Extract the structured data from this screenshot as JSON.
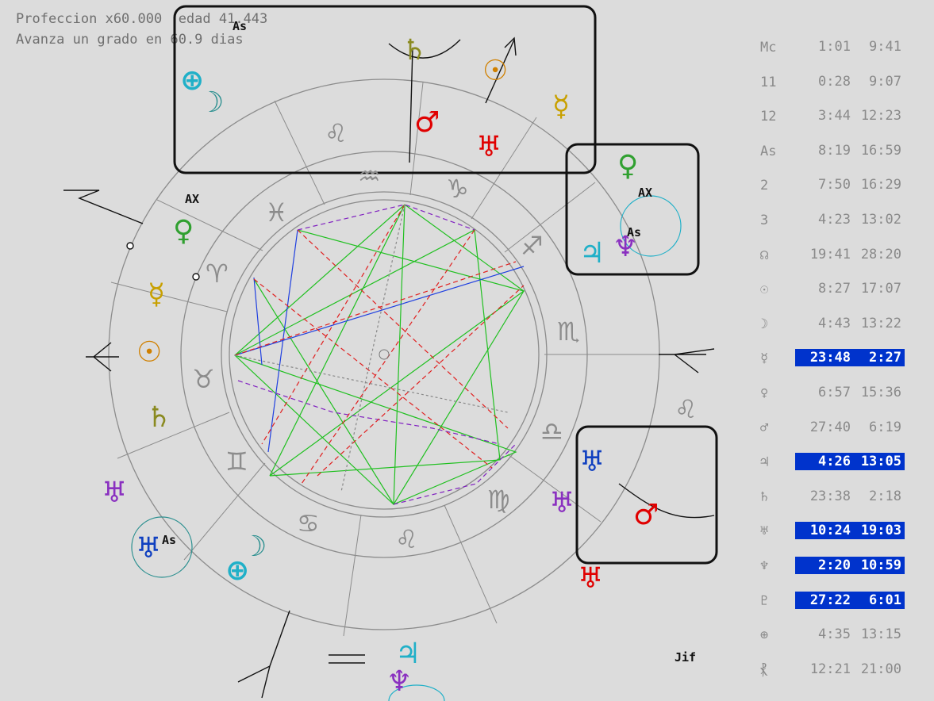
{
  "header": {
    "line1": "Profeccion x60.000  edad 41.443",
    "line2": "Avanza un grado en 60.9 dias"
  },
  "colors": {
    "background": "#dcdcdc",
    "ring": "#8c8c8c",
    "highlight": "#0033cc",
    "sun": "#d08000",
    "moon": "#2a8f8f",
    "mercury": "#c8a000",
    "venus": "#30a030",
    "mars": "#e00000",
    "jupiter": "#20b0c8",
    "saturn": "#8a8a20",
    "uranus": "#1040c0",
    "neptune": "#8a30c0",
    "pluto": "#8a30c0",
    "earth": "#20b0c8",
    "aspect_green": "#20c020",
    "aspect_red": "#e02020",
    "aspect_blue": "#2040e0",
    "aspect_purple": "#8020c0"
  },
  "zodiac_signs": [
    {
      "glyph": "♌",
      "color": "#8c8c8c"
    },
    {
      "glyph": "♒",
      "color": "#8c8c8c"
    },
    {
      "glyph": "♑",
      "color": "#8c8c8c"
    },
    {
      "glyph": "♓",
      "color": "#8c8c8c"
    },
    {
      "glyph": "♈",
      "color": "#8c8c8c"
    },
    {
      "glyph": "♉",
      "color": "#8c8c8c"
    },
    {
      "glyph": "♊",
      "color": "#8c8c8c"
    },
    {
      "glyph": "♋",
      "color": "#8c8c8c"
    },
    {
      "glyph": "♌",
      "color": "#8c8c8c"
    },
    {
      "glyph": "♍",
      "color": "#8c8c8c"
    },
    {
      "glyph": "♎",
      "color": "#8c8c8c"
    },
    {
      "glyph": "♏",
      "color": "#8c8c8c"
    },
    {
      "glyph": "♐",
      "color": "#8c8c8c"
    },
    {
      "glyph": "♌",
      "color": "#8c8c8c"
    }
  ],
  "planets": [
    {
      "glyph": "⊕",
      "color": "#20b0c8"
    },
    {
      "glyph": "☽",
      "color": "#2a8f8f"
    },
    {
      "glyph": "♄",
      "color": "#8a8a20"
    },
    {
      "glyph": "☉",
      "color": "#d08000"
    },
    {
      "glyph": "♂",
      "color": "#e00000"
    },
    {
      "glyph": "♅",
      "color": "#e00000"
    },
    {
      "glyph": "☿",
      "color": "#c8a000"
    },
    {
      "glyph": "♀",
      "color": "#30a030"
    },
    {
      "glyph": "♃",
      "color": "#20b0c8"
    },
    {
      "glyph": "♆",
      "color": "#8a30c0"
    },
    {
      "glyph": "♀",
      "color": "#30a030"
    },
    {
      "glyph": "☿",
      "color": "#c8a000"
    },
    {
      "glyph": "☉",
      "color": "#d08000"
    },
    {
      "glyph": "♄",
      "color": "#8a8a20"
    },
    {
      "glyph": "♅",
      "color": "#8a30c0"
    },
    {
      "glyph": "♅",
      "color": "#1040c0"
    },
    {
      "glyph": "☽",
      "color": "#2a8f8f"
    },
    {
      "glyph": "⊕",
      "color": "#20b0c8"
    },
    {
      "glyph": "♅",
      "color": "#1040c0"
    },
    {
      "glyph": "♅",
      "color": "#8a30c0"
    },
    {
      "glyph": "♂",
      "color": "#e00000"
    },
    {
      "glyph": "♅",
      "color": "#e00000"
    },
    {
      "glyph": "♃",
      "color": "#20b0c8"
    },
    {
      "glyph": "♆",
      "color": "#8a30c0"
    }
  ],
  "chart_labels": {
    "ax1": "AX",
    "ax2": "AX",
    "as1": "As",
    "as2": "As",
    "as3": "As",
    "mark": "Jif"
  },
  "table": [
    {
      "label": "Mc",
      "v1": "1:01",
      "v2": "9:41",
      "h1": false,
      "h2": false
    },
    {
      "label": "11",
      "v1": "0:28",
      "v2": "9:07",
      "h1": false,
      "h2": false
    },
    {
      "label": "12",
      "v1": "3:44",
      "v2": "12:23",
      "h1": false,
      "h2": false
    },
    {
      "label": "As",
      "v1": "8:19",
      "v2": "16:59",
      "h1": false,
      "h2": false
    },
    {
      "label": "2",
      "v1": "7:50",
      "v2": "16:29",
      "h1": false,
      "h2": false
    },
    {
      "label": "3",
      "v1": "4:23",
      "v2": "13:02",
      "h1": false,
      "h2": false
    },
    {
      "label": "☊",
      "v1": "19:41",
      "v2": "28:20",
      "h1": false,
      "h2": false
    },
    {
      "label": "☉",
      "v1": "8:27",
      "v2": "17:07",
      "h1": false,
      "h2": false
    },
    {
      "label": "☽",
      "v1": "4:43",
      "v2": "13:22",
      "h1": false,
      "h2": false
    },
    {
      "label": "☿",
      "v1": "23:48",
      "v2": "2:27",
      "h1": true,
      "h2": true
    },
    {
      "label": "♀",
      "v1": "6:57",
      "v2": "15:36",
      "h1": false,
      "h2": false
    },
    {
      "label": "♂",
      "v1": "27:40",
      "v2": "6:19",
      "h1": false,
      "h2": false
    },
    {
      "label": "♃",
      "v1": "4:26",
      "v2": "13:05",
      "h1": true,
      "h2": true
    },
    {
      "label": "♄",
      "v1": "23:38",
      "v2": "2:18",
      "h1": false,
      "h2": false
    },
    {
      "label": "♅",
      "v1": "10:24",
      "v2": "19:03",
      "h1": true,
      "h2": true
    },
    {
      "label": "♆",
      "v1": "2:20",
      "v2": "10:59",
      "h1": true,
      "h2": true
    },
    {
      "label": "♇",
      "v1": "27:22",
      "v2": "6:01",
      "h1": true,
      "h2": true
    },
    {
      "label": "⊕",
      "v1": "4:35",
      "v2": "13:15",
      "h1": false,
      "h2": false
    },
    {
      "label": "⳩",
      "v1": "12:21",
      "v2": "21:00",
      "h1": false,
      "h2": false
    }
  ]
}
